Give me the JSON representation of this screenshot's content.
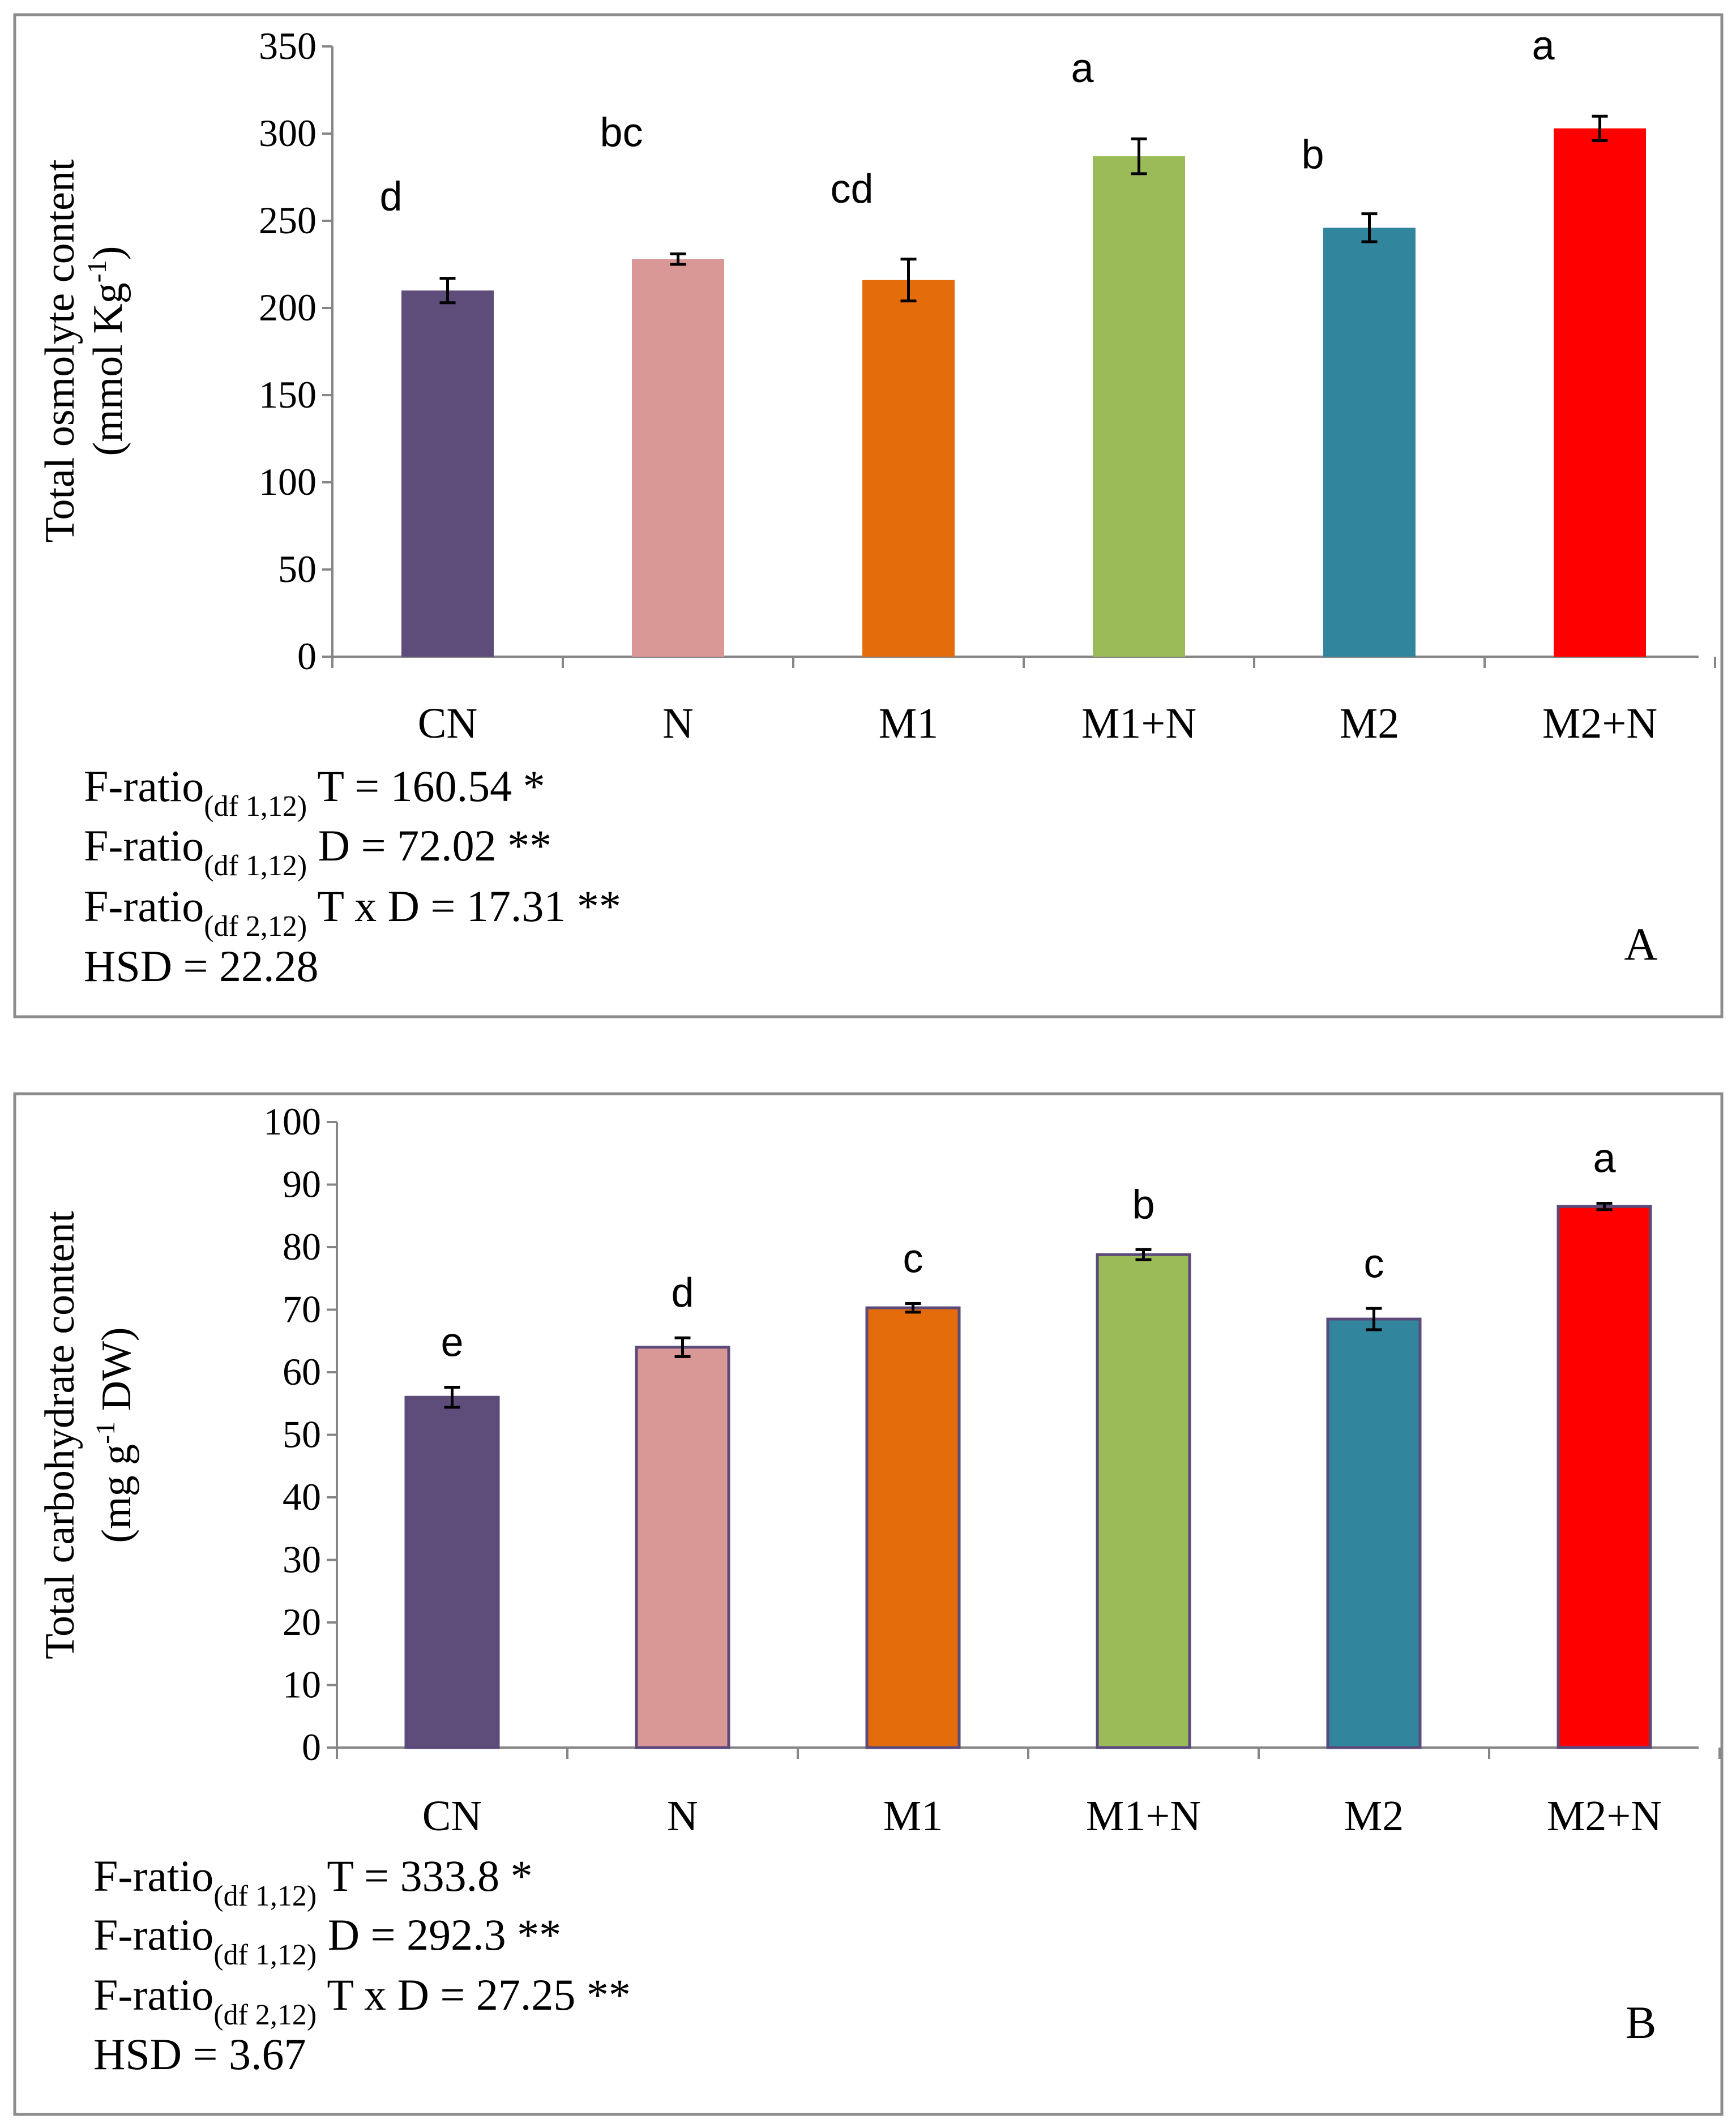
{
  "chart_data": [
    {
      "type": "bar",
      "panel_label": "A",
      "title": "",
      "ylabel_line1": "Total osmolyte content",
      "ylabel_line2_prefix": "(mmol Kg",
      "ylabel_line2_sup": "-1",
      "ylabel_line2_suffix": ")",
      "xlabel": "",
      "ylim": [
        0,
        350
      ],
      "yticks": [
        0,
        50,
        100,
        150,
        200,
        250,
        300,
        350
      ],
      "categories": [
        "CN",
        "N",
        "M1",
        "M1+N",
        "M2",
        "M2+N"
      ],
      "values": [
        210,
        228,
        216,
        287,
        246,
        303
      ],
      "errors": [
        7,
        3,
        12,
        10,
        8,
        7
      ],
      "significance_letters": [
        "d",
        "bc",
        "cd",
        "a",
        "b",
        "a"
      ],
      "colors": [
        "#5e4c7b",
        "#d99795",
        "#e46c0a",
        "#9bbb59",
        "#31859c",
        "#ff0000"
      ],
      "stats": [
        {
          "prefix": "F-ratio",
          "sub": "(df 1,12)",
          "text": " T = 160.54 *"
        },
        {
          "prefix": "F-ratio",
          "sub": "(df 1,12)",
          "text": "  D = 72.02 **"
        },
        {
          "prefix": "F-ratio",
          "sub": "(df 2,12)",
          "text": " T x D = 17.31 **"
        },
        {
          "prefix": "HSD = 22.28",
          "sub": "",
          "text": ""
        }
      ]
    },
    {
      "type": "bar",
      "panel_label": "B",
      "title": "",
      "ylabel_line1": "Total carbohydrate content",
      "ylabel_line2_prefix": "(mg g",
      "ylabel_line2_sup": "-1",
      "ylabel_line2_suffix": " DW)",
      "xlabel": "",
      "ylim": [
        0,
        100
      ],
      "yticks": [
        0,
        10,
        20,
        30,
        40,
        50,
        60,
        70,
        80,
        90,
        100
      ],
      "categories": [
        "CN",
        "N",
        "M1",
        "M1+N",
        "M2",
        "M2+N"
      ],
      "values": [
        56,
        64,
        70.3,
        78.8,
        68.5,
        86.5
      ],
      "errors": [
        1.6,
        1.5,
        0.7,
        0.8,
        1.7,
        0.5
      ],
      "significance_letters": [
        "e",
        "d",
        "c",
        "b",
        "c",
        "a"
      ],
      "colors": [
        "#5e4c7b",
        "#d99795",
        "#e46c0a",
        "#9bbb59",
        "#31859c",
        "#ff0000"
      ],
      "stats": [
        {
          "prefix": "F-ratio",
          "sub": "(df 1,12)",
          "text": " T = 333.8 *"
        },
        {
          "prefix": "F-ratio",
          "sub": "(df 1,12)",
          "text": "  D = 292.3 **"
        },
        {
          "prefix": "F-ratio",
          "sub": "(df 2,12)",
          "text": " T x D = 27.25 **"
        },
        {
          "prefix": "HSD = 3.67",
          "sub": "",
          "text": ""
        }
      ]
    }
  ]
}
